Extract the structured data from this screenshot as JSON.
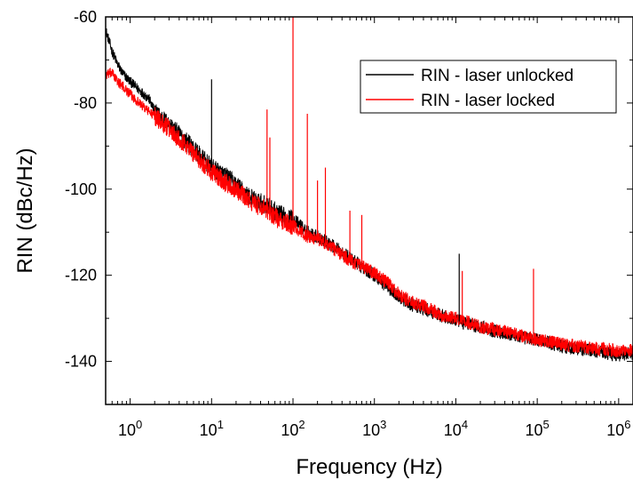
{
  "chart_data": {
    "type": "line",
    "title": "",
    "xlabel": "Frequency (Hz)",
    "ylabel": "RIN (dBc/Hz)",
    "xscale": "log",
    "xlim": [
      0.5,
      1500000
    ],
    "ylim": [
      -150,
      -60
    ],
    "grid": false,
    "legend_position": "top-right",
    "x_ticks": [
      {
        "value": 1,
        "base": "10",
        "exp": "0"
      },
      {
        "value": 10,
        "base": "10",
        "exp": "1"
      },
      {
        "value": 100,
        "base": "10",
        "exp": "2"
      },
      {
        "value": 1000,
        "base": "10",
        "exp": "3"
      },
      {
        "value": 10000,
        "base": "10",
        "exp": "4"
      },
      {
        "value": 100000,
        "base": "10",
        "exp": "5"
      },
      {
        "value": 1000000,
        "base": "10",
        "exp": "6"
      }
    ],
    "y_ticks": [
      {
        "value": -60,
        "label": "-60"
      },
      {
        "value": -80,
        "label": "-80"
      },
      {
        "value": -100,
        "label": "-100"
      },
      {
        "value": -120,
        "label": "-120"
      },
      {
        "value": -140,
        "label": "-140"
      }
    ],
    "series": [
      {
        "name": "RIN - laser unlocked",
        "color": "#000000",
        "x": [
          0.5,
          0.6,
          0.7,
          0.8,
          1,
          1.3,
          1.7,
          2,
          3,
          5,
          7,
          10,
          15,
          20,
          30,
          50,
          70,
          100,
          150,
          200,
          300,
          500,
          700,
          1000,
          1500,
          2000,
          3000,
          5000,
          7000,
          10000,
          20000,
          50000,
          100000,
          200000,
          500000,
          1000000,
          1500000
        ],
        "y": [
          -63,
          -68,
          -71,
          -73,
          -75,
          -77,
          -79,
          -82,
          -85,
          -89,
          -92,
          -95,
          -97,
          -99,
          -102,
          -104,
          -106,
          -107,
          -110,
          -111,
          -113,
          -116,
          -118,
          -120,
          -123,
          -125,
          -127,
          -128.5,
          -129.5,
          -130.5,
          -132,
          -134,
          -135,
          -136.5,
          -137.5,
          -138.5,
          -138
        ]
      },
      {
        "name": "RIN - laser locked",
        "color": "#ff0000",
        "x": [
          0.5,
          0.6,
          0.7,
          0.8,
          1,
          1.3,
          1.7,
          2,
          3,
          5,
          7,
          10,
          15,
          20,
          30,
          50,
          70,
          100,
          150,
          200,
          300,
          500,
          700,
          1000,
          1500,
          2000,
          3000,
          5000,
          7000,
          10000,
          20000,
          50000,
          100000,
          200000,
          500000,
          1000000,
          1500000
        ],
        "y": [
          -73.5,
          -73,
          -75,
          -76,
          -78,
          -80,
          -82,
          -83,
          -86,
          -90,
          -93,
          -96,
          -98.5,
          -100,
          -103,
          -105,
          -107.5,
          -108.5,
          -111,
          -111.5,
          -113.5,
          -116.5,
          -118,
          -119.5,
          -122,
          -124.5,
          -126.5,
          -128,
          -129.5,
          -130,
          -132,
          -133.5,
          -135,
          -136,
          -137,
          -137.5,
          -137.5
        ]
      }
    ],
    "peaks": [
      {
        "series": "RIN - laser unlocked",
        "x": 10,
        "y": -74.5
      },
      {
        "series": "RIN - laser locked",
        "x": 48,
        "y": -81.5
      },
      {
        "series": "RIN - laser locked",
        "x": 52,
        "y": -88
      },
      {
        "series": "RIN - laser locked",
        "x": 100,
        "y": -60
      },
      {
        "series": "RIN - laser locked",
        "x": 150,
        "y": -82.5
      },
      {
        "series": "RIN - laser locked",
        "x": 200,
        "y": -98
      },
      {
        "series": "RIN - laser locked",
        "x": 250,
        "y": -95
      },
      {
        "series": "RIN - laser locked",
        "x": 500,
        "y": -105
      },
      {
        "series": "RIN - laser locked",
        "x": 700,
        "y": -106
      },
      {
        "series": "RIN - laser unlocked",
        "x": 11000,
        "y": -115
      },
      {
        "series": "RIN - laser locked",
        "x": 12000,
        "y": -119
      },
      {
        "series": "RIN - laser locked",
        "x": 90000,
        "y": -118.5
      }
    ]
  }
}
